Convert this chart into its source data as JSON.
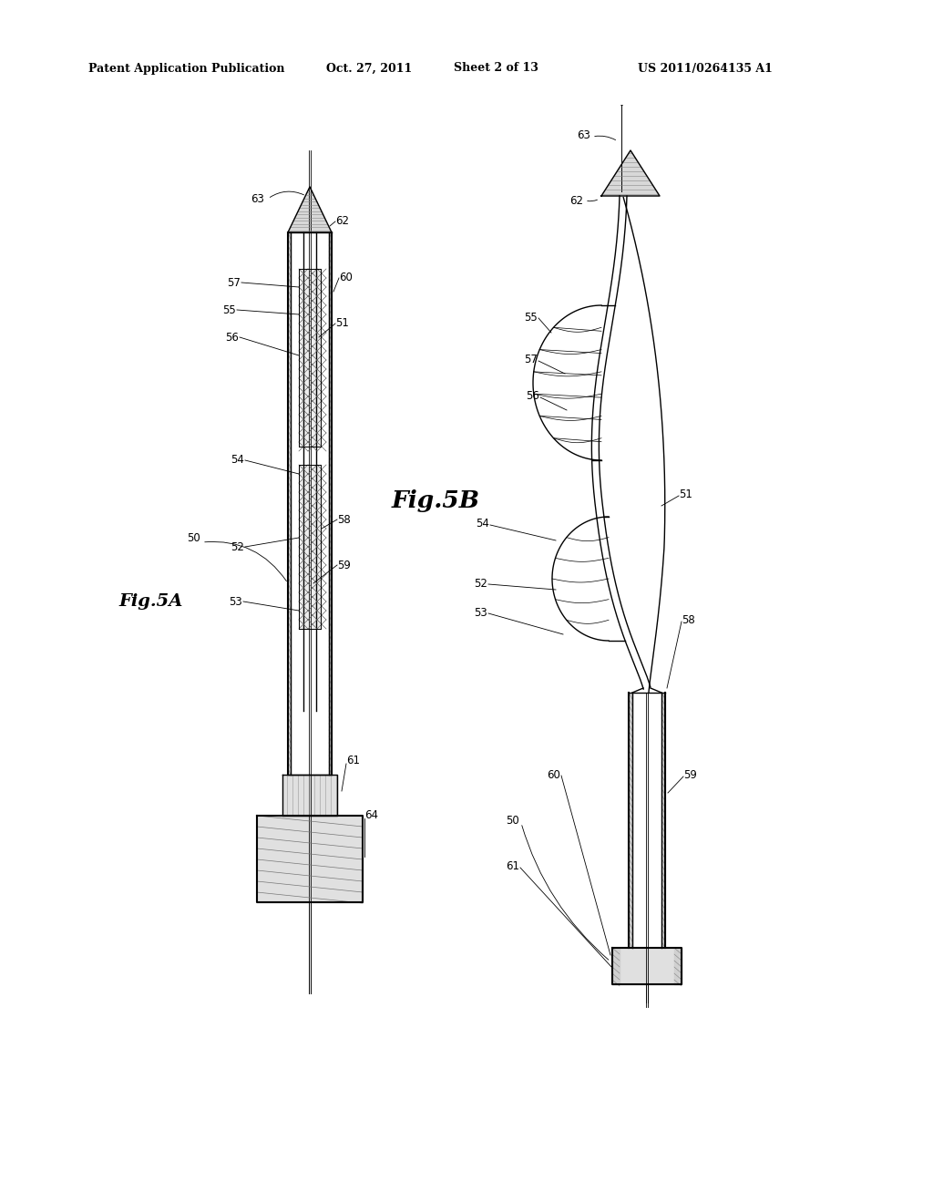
{
  "bg_color": "#ffffff",
  "line_color": "#000000",
  "header_text": "Patent Application Publication",
  "header_date": "Oct. 27, 2011",
  "header_sheet": "Sheet 2 of 13",
  "header_patent": "US 2011/0264135 A1",
  "fig5a_label": "Fig.5A",
  "fig5b_label": "Fig.5B"
}
